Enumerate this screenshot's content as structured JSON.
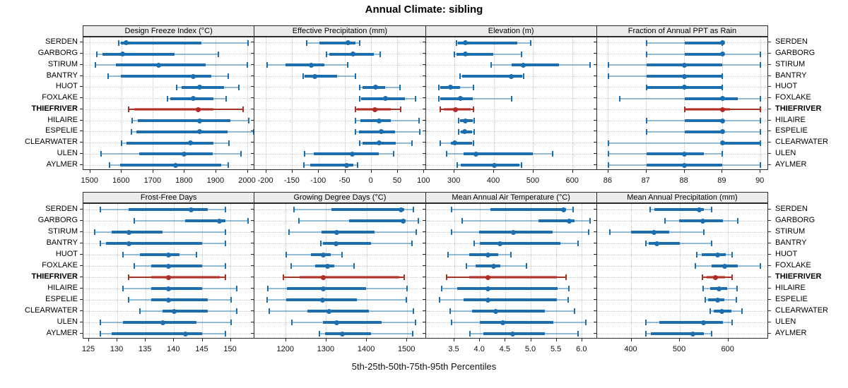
{
  "title": "Annual Climate: sibling",
  "caption": "5th-25th-50th-75th-95th Percentiles",
  "sites": [
    "SERDEN",
    "GARBORG",
    "STIRUM",
    "BANTRY",
    "HUOT",
    "FOXLAKE",
    "THIEFRIVER",
    "HILAIRE",
    "ESPELIE",
    "CLEARWATER",
    "ULEN",
    "AYLMER"
  ],
  "highlight_site": "THIEFRIVER",
  "colors": {
    "normal": {
      "whisker": "rgba(31,119,180,0.45)",
      "box": "#1b6fb0",
      "median": "#1b6fb0",
      "cap": "#1b6fb0"
    },
    "highlight": {
      "whisker": "#a93226",
      "box": "rgba(185,50,40,0.6)",
      "median": "#b02c25",
      "cap": "#a93226"
    },
    "grid": "#c9c9c9",
    "strip_bg": "#ececec"
  },
  "chart_data": {
    "type": "scatter",
    "subtype": "percentile-interval-lattice",
    "percentiles": [
      "5th",
      "25th",
      "50th",
      "75th",
      "95th"
    ],
    "legend_note": "thin line = 5th-95th, thick bar = 25th-75th, dot = median",
    "panels": [
      {
        "title": "Design Freeze Index (°C)",
        "xlim": [
          1478,
          2022
        ],
        "tick_values": [
          1500,
          1600,
          1700,
          1800,
          1900,
          2000
        ],
        "tick_labels": [
          "1500",
          "1600",
          "1700",
          "1800",
          "1900",
          "2000"
        ],
        "values": [
          [
            1590,
            1598,
            1613,
            1853,
            2000
          ],
          [
            1520,
            1538,
            1602,
            1768,
            1906
          ],
          [
            1515,
            1582,
            1717,
            1866,
            1999
          ],
          [
            1556,
            1598,
            1827,
            1885,
            1938
          ],
          [
            1774,
            1790,
            1847,
            1926,
            1972
          ],
          [
            1746,
            1753,
            1826,
            1890,
            1932
          ],
          [
            1622,
            1640,
            1843,
            1892,
            1986
          ],
          [
            1633,
            1650,
            1848,
            1945,
            2004
          ],
          [
            1631,
            1647,
            1848,
            1936,
            2018
          ],
          [
            1599,
            1614,
            1818,
            1892,
            1940
          ],
          [
            1535,
            1655,
            1797,
            1890,
            1978
          ],
          [
            1560,
            1595,
            1772,
            1915,
            1938
          ]
        ]
      },
      {
        "title": "Effective Precipitation (mm)",
        "xlim": [
          -222,
          103
        ],
        "tick_values": [
          -200,
          -150,
          -100,
          -50,
          0,
          50,
          100
        ],
        "tick_labels": [
          "-200",
          "-150",
          "-100",
          "-50",
          "0",
          "50",
          "100"
        ],
        "values": [
          [
            -123,
            -99,
            -44,
            -31,
            -23
          ],
          [
            -85,
            -80,
            -35,
            5,
            17
          ],
          [
            -198,
            -163,
            -115,
            -90,
            -45
          ],
          [
            -130,
            -127,
            -108,
            -65,
            -30
          ],
          [
            -23,
            -17,
            8,
            26,
            54
          ],
          [
            -23,
            -20,
            27,
            64,
            84
          ],
          [
            -31,
            -28,
            7,
            37,
            55
          ],
          [
            -30,
            -21,
            14,
            37,
            90
          ],
          [
            -31,
            -24,
            19,
            44,
            91
          ],
          [
            -22,
            -17,
            15,
            46,
            77
          ],
          [
            -127,
            -110,
            -37,
            14,
            42
          ],
          [
            -129,
            -116,
            -47,
            -35,
            -27
          ]
        ]
      },
      {
        "title": "Elevation (m)",
        "xlim": [
          227,
          661
        ],
        "tick_values": [
          300,
          400,
          500,
          600
        ],
        "tick_labels": [
          "300",
          "400",
          "500",
          "600"
        ],
        "values": [
          [
            304,
            309,
            328,
            459,
            493
          ],
          [
            300,
            305,
            328,
            398,
            470
          ],
          [
            392,
            445,
            475,
            565,
            643
          ],
          [
            314,
            320,
            444,
            471,
            475
          ],
          [
            260,
            264,
            290,
            314,
            347
          ],
          [
            260,
            263,
            314,
            347,
            444
          ],
          [
            264,
            272,
            302,
            340,
            348
          ],
          [
            310,
            314,
            328,
            346,
            349
          ],
          [
            311,
            316,
            326,
            345,
            350
          ],
          [
            263,
            290,
            300,
            345,
            347
          ],
          [
            280,
            322,
            355,
            499,
            548
          ],
          [
            307,
            315,
            400,
            465,
            470
          ]
        ]
      },
      {
        "title": "Fraction of Annual PPT as Rain",
        "xlim": [
          85.7,
          90.2
        ],
        "tick_values": [
          86,
          87,
          88,
          89,
          90
        ],
        "tick_labels": [
          "86",
          "87",
          "88",
          "89",
          "90"
        ],
        "values": [
          [
            87,
            88,
            89,
            89,
            89
          ],
          [
            87,
            88,
            89,
            89,
            90
          ],
          [
            86,
            87,
            88,
            89,
            90
          ],
          [
            86,
            87,
            88,
            89,
            89
          ],
          [
            87,
            87,
            88,
            89,
            89
          ],
          [
            86.3,
            88,
            89,
            89.4,
            90
          ],
          [
            88,
            88,
            89,
            89.2,
            90
          ],
          [
            87,
            88,
            89,
            89,
            90
          ],
          [
            87,
            88,
            89,
            89,
            90
          ],
          [
            86,
            89,
            89,
            90,
            90
          ],
          [
            86,
            87,
            88,
            88.5,
            89
          ],
          [
            86,
            87,
            88,
            89,
            90
          ]
        ]
      },
      {
        "title": "Frost-Free Days",
        "xlim": [
          124,
          154.2
        ],
        "tick_values": [
          125,
          130,
          135,
          140,
          145,
          150
        ],
        "tick_labels": [
          "125",
          "130",
          "135",
          "140",
          "145",
          "150"
        ],
        "values": [
          [
            127,
            132,
            143,
            146,
            149
          ],
          [
            133,
            142,
            148,
            149,
            153
          ],
          [
            126,
            129,
            132,
            138,
            149
          ],
          [
            127,
            128,
            132,
            145,
            149
          ],
          [
            131,
            134,
            139,
            141,
            144
          ],
          [
            133,
            136,
            139,
            145,
            149
          ],
          [
            132,
            136,
            139,
            148,
            149
          ],
          [
            131,
            136,
            139,
            145,
            151
          ],
          [
            132,
            136,
            139,
            146,
            150
          ],
          [
            134,
            138,
            140,
            146,
            151
          ],
          [
            127,
            131,
            138,
            144,
            150
          ],
          [
            127,
            129,
            142,
            145,
            149
          ]
        ]
      },
      {
        "title": "Growing Degree Days (°C)",
        "xlim": [
          1122,
          1546
        ],
        "tick_values": [
          1200,
          1300,
          1400,
          1500
        ],
        "tick_labels": [
          "1200",
          "1300",
          "1400",
          "1500"
        ],
        "values": [
          [
            1220,
            1313,
            1485,
            1492,
            1516
          ],
          [
            1231,
            1356,
            1490,
            1496,
            1528
          ],
          [
            1208,
            1287,
            1325,
            1419,
            1523
          ],
          [
            1286,
            1291,
            1324,
            1411,
            1512
          ],
          [
            1200,
            1261,
            1292,
            1311,
            1339
          ],
          [
            1212,
            1272,
            1302,
            1320,
            1369
          ],
          [
            1193,
            1234,
            1293,
            1480,
            1493
          ],
          [
            1155,
            1202,
            1292,
            1398,
            1499
          ],
          [
            1153,
            1200,
            1290,
            1375,
            1497
          ],
          [
            1159,
            1253,
            1306,
            1405,
            1515
          ],
          [
            1214,
            1291,
            1325,
            1437,
            1521
          ],
          [
            1282,
            1296,
            1339,
            1411,
            1514
          ]
        ]
      },
      {
        "title": "Mean Annual Air Temperature (°C)",
        "xlim": [
          2.94,
          6.29
        ],
        "tick_values": [
          3.5,
          4.0,
          4.5,
          5.0,
          5.5,
          6.0
        ],
        "tick_labels": [
          "3.5",
          "4.0",
          "4.5",
          "5.0",
          "5.5",
          "6.0"
        ],
        "values": [
          [
            3.45,
            4.2,
            5.64,
            5.68,
            5.82
          ],
          [
            3.65,
            5.15,
            5.74,
            5.85,
            6.15
          ],
          [
            3.44,
            3.99,
            4.65,
            5.43,
            6.12
          ],
          [
            3.88,
            4.0,
            4.39,
            5.57,
            5.92
          ],
          [
            3.38,
            3.79,
            4.15,
            4.35,
            4.6
          ],
          [
            3.74,
            3.91,
            4.27,
            4.4,
            4.91
          ],
          [
            3.35,
            3.79,
            4.16,
            5.5,
            5.68
          ],
          [
            3.25,
            3.56,
            4.15,
            5.52,
            5.74
          ],
          [
            3.21,
            3.68,
            4.16,
            5.5,
            5.73
          ],
          [
            3.42,
            3.84,
            4.31,
            5.27,
            5.85
          ],
          [
            3.45,
            4.0,
            4.44,
            5.43,
            6.07
          ],
          [
            3.8,
            4.07,
            4.64,
            5.27,
            5.92
          ]
        ]
      },
      {
        "title": "Mean Annual Precipitation (mm)",
        "xlim": [
          329,
          682
        ],
        "tick_values": [
          400,
          500,
          600
        ],
        "tick_labels": [
          "400",
          "500",
          "600"
        ],
        "values": [
          [
            438,
            448,
            540,
            550,
            565
          ],
          [
            469,
            499,
            547,
            589,
            620
          ],
          [
            355,
            400,
            446,
            478,
            550
          ],
          [
            430,
            436,
            452,
            500,
            565
          ],
          [
            535,
            545,
            578,
            595,
            608
          ],
          [
            532,
            565,
            592,
            620,
            666
          ],
          [
            546,
            555,
            574,
            593,
            607
          ],
          [
            548,
            562,
            580,
            598,
            618
          ],
          [
            553,
            558,
            578,
            592,
            616
          ],
          [
            563,
            570,
            586,
            606,
            628
          ],
          [
            430,
            457,
            548,
            589,
            607
          ],
          [
            430,
            440,
            527,
            550,
            565
          ]
        ]
      }
    ]
  }
}
